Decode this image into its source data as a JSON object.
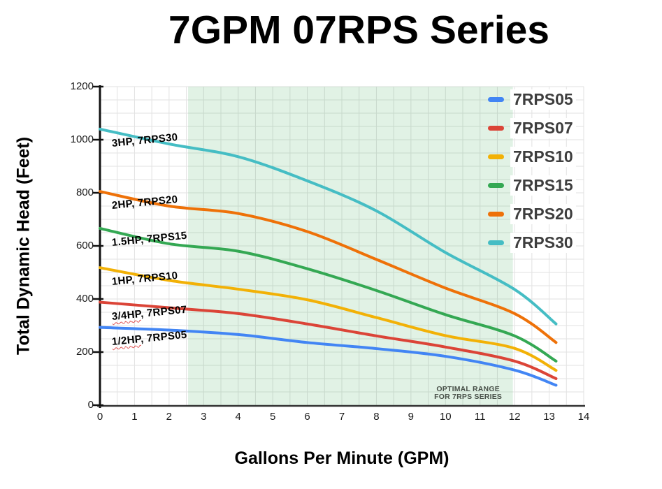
{
  "page_title": "7GPM 07RPS Series",
  "chart_data": {
    "type": "line",
    "title": "7GPM 07RPS Series",
    "xlabel": "Gallons Per Minute (GPM)",
    "ylabel": "Total Dynamic Head (Feet)",
    "xlim": [
      0,
      14
    ],
    "ylim": [
      0,
      1200
    ],
    "x_ticks": [
      0,
      1,
      2,
      3,
      4,
      5,
      6,
      7,
      8,
      9,
      10,
      11,
      12,
      13,
      14
    ],
    "y_ticks": [
      0,
      200,
      400,
      600,
      800,
      1000,
      1200
    ],
    "grid": {
      "visible": true,
      "x_step": 0.5,
      "y_step": 50,
      "color": "#e2e2e2"
    },
    "optimal_range": {
      "x_start": 2.55,
      "x_end": 11.95,
      "fill": "#34a853",
      "fill_opacity": 0.15,
      "label_line1": "OPTIMAL RANGE",
      "label_line2": "FOR 7RPS SERIES"
    },
    "x": [
      0,
      2,
      4,
      6,
      8,
      10,
      12,
      13.2
    ],
    "series": [
      {
        "name": "7RPS05",
        "color": "#4285f4",
        "values": [
          293,
          283,
          266,
          236,
          213,
          184,
          132,
          75
        ],
        "annotation_hp": "1/2HP",
        "annotation_rest": ", 7RPS05",
        "annotation_misspell": true
      },
      {
        "name": "7RPS07",
        "color": "#db4437",
        "values": [
          388,
          367,
          345,
          306,
          261,
          219,
          166,
          100
        ],
        "annotation_hp": "3/4HP",
        "annotation_rest": ", 7RPS07",
        "annotation_misspell": true
      },
      {
        "name": "7RPS10",
        "color": "#f2b106",
        "values": [
          518,
          470,
          437,
          397,
          330,
          262,
          214,
          131
        ],
        "annotation_hp": "1HP",
        "annotation_rest": ", 7RPS10",
        "annotation_misspell": false
      },
      {
        "name": "7RPS15",
        "color": "#34a853",
        "values": [
          666,
          608,
          580,
          514,
          432,
          341,
          261,
          166
        ],
        "annotation_hp": "1.5HP",
        "annotation_rest": ", 7RPS15",
        "annotation_misspell": false
      },
      {
        "name": "7RPS20",
        "color": "#ee7108",
        "values": [
          805,
          750,
          722,
          654,
          549,
          441,
          345,
          236
        ],
        "annotation_hp": "2HP",
        "annotation_rest": ", 7RPS20",
        "annotation_misspell": false
      },
      {
        "name": "7RPS30",
        "color": "#45bdc4",
        "values": [
          1040,
          984,
          936,
          845,
          732,
          575,
          436,
          306
        ],
        "annotation_hp": "3HP",
        "annotation_rest": ", 7RPS30",
        "annotation_misspell": false
      }
    ],
    "legend": {
      "position": "top-right",
      "labels": [
        "7RPS05",
        "7RPS07",
        "7RPS10",
        "7RPS15",
        "7RPS20",
        "7RPS30"
      ]
    }
  }
}
